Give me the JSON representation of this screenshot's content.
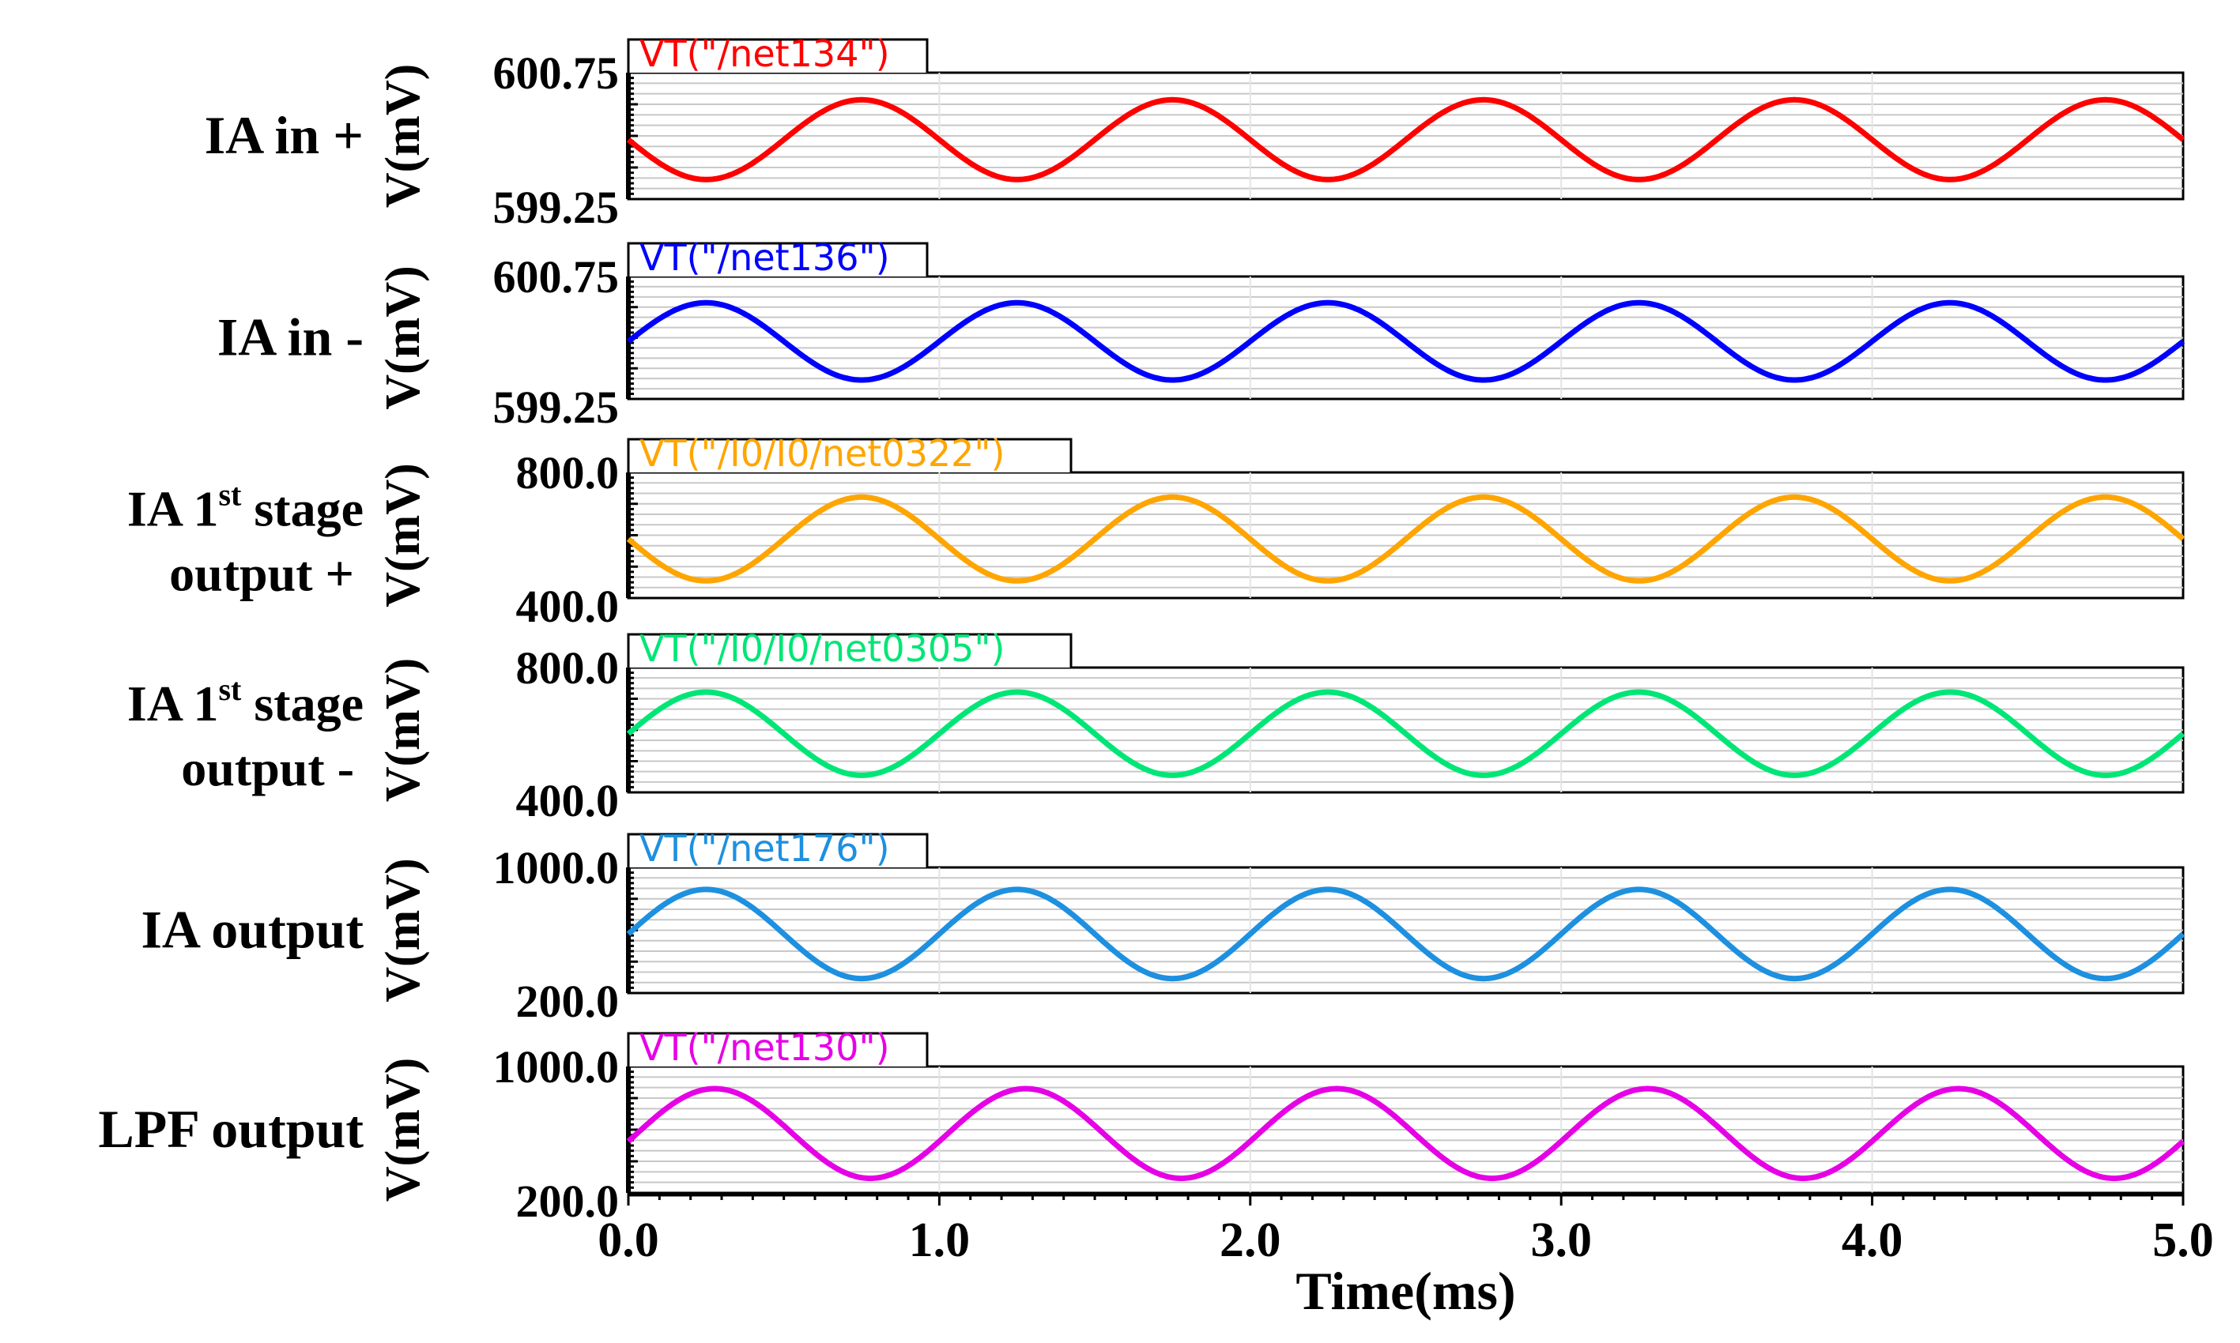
{
  "chart_data": {
    "type": "line",
    "xlabel": "Time(ms)",
    "xlim": [
      0.0,
      5.0
    ],
    "x_ticks": [
      "0.0",
      "1.0",
      "2.0",
      "3.0",
      "4.0",
      "5.0"
    ],
    "panels": [
      {
        "id": "ia-in-plus",
        "row_label": [
          "IA in +"
        ],
        "ylabel": "V(mV)",
        "y_ticks": [
          "600.75",
          "599.25"
        ],
        "ylim": [
          599.25,
          600.75
        ],
        "series": {
          "name": "VT(\"/net134\")",
          "color": "#ff0000",
          "frequency_khz": 1.0,
          "offset_mv": 600.0,
          "amplitude_mv": 0.55,
          "phase_deg": 180,
          "x_end_ms": 5.0
        }
      },
      {
        "id": "ia-in-minus",
        "row_label": [
          "IA in -"
        ],
        "ylabel": "V(mV)",
        "y_ticks": [
          "600.75",
          "599.25"
        ],
        "ylim": [
          599.25,
          600.75
        ],
        "series": {
          "name": "VT(\"/net136\")",
          "color": "#0000ff",
          "frequency_khz": 1.0,
          "offset_mv": 600.0,
          "amplitude_mv": 0.55,
          "phase_deg": 0,
          "x_end_ms": 5.0
        }
      },
      {
        "id": "ia-1st-stage-output-plus",
        "row_label": [
          "IA 1",
          "st",
          " stage",
          "output +"
        ],
        "ylabel": "V(mV)",
        "y_ticks": [
          "800.0",
          "400.0"
        ],
        "ylim": [
          400.0,
          800.0
        ],
        "series": {
          "name": "VT(\"/I0/I0/net0322\")",
          "color": "#ffa500",
          "frequency_khz": 1.0,
          "offset_mv": 600.0,
          "amplitude_mv": 155.0,
          "phase_deg": 180,
          "x_end_ms": 5.0
        }
      },
      {
        "id": "ia-1st-stage-output-minus",
        "row_label": [
          "IA 1",
          "st",
          " stage",
          "output -"
        ],
        "ylabel": "V(mV)",
        "y_ticks": [
          "800.0",
          "400.0"
        ],
        "ylim": [
          400.0,
          800.0
        ],
        "series": {
          "name": "VT(\"/I0/I0/net0305\")",
          "color": "#00e676",
          "frequency_khz": 1.0,
          "offset_mv": 600.0,
          "amplitude_mv": 155.0,
          "phase_deg": 0,
          "x_end_ms": 5.0
        }
      },
      {
        "id": "ia-output",
        "row_label": [
          "IA output"
        ],
        "ylabel": "V(mV)",
        "y_ticks": [
          "1000.0",
          "200.0"
        ],
        "ylim": [
          200.0,
          1000.0
        ],
        "series": {
          "name": "VT(\"/net176\")",
          "color": "#1e90e0",
          "frequency_khz": 1.0,
          "offset_mv": 600.0,
          "amplitude_mv": 330.0,
          "phase_deg": 0,
          "x_end_ms": 5.0
        }
      },
      {
        "id": "lpf-output",
        "row_label": [
          "LPF output"
        ],
        "ylabel": "V(mV)",
        "y_ticks": [
          "1000.0",
          "200.0"
        ],
        "ylim": [
          200.0,
          1000.0
        ],
        "series": {
          "name": "VT(\"/net130\")",
          "color": "#e600e6",
          "frequency_khz": 1.0,
          "offset_mv": 600.0,
          "amplitude_mv": 330.0,
          "phase_deg": -10,
          "x_end_ms": 5.0
        }
      }
    ]
  }
}
